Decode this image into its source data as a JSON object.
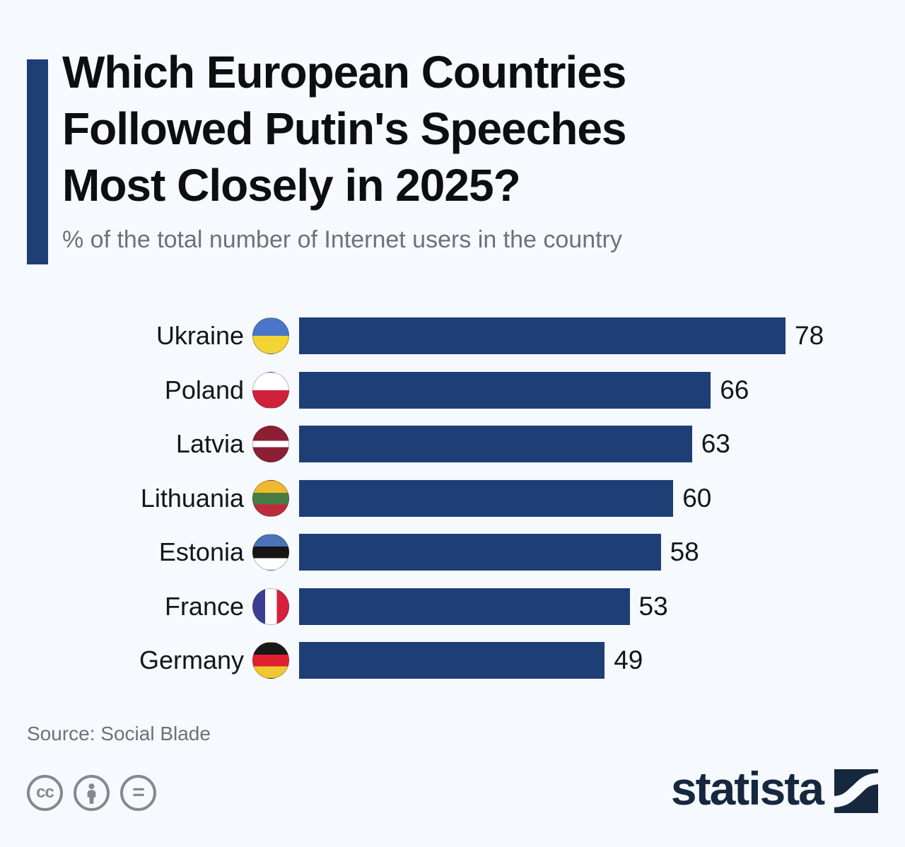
{
  "page": {
    "background": "#f6f9fd"
  },
  "header": {
    "accent_color": "#1e3f76",
    "title_lines": [
      "Which European Countries",
      "Followed Putin's Speeches",
      "Most Closely in 2025?"
    ],
    "subtitle": "% of the total number of Internet users in the country"
  },
  "chart_data": {
    "type": "bar",
    "orientation": "horizontal",
    "title": "Which European Countries Followed Putin's Speeches Most Closely in 2025?",
    "xlabel": "% of the total number of Internet users in the country",
    "categories": [
      "Ukraine",
      "Poland",
      "Latvia",
      "Lithuania",
      "Estonia",
      "France",
      "Germany"
    ],
    "values": [
      78,
      66,
      63,
      60,
      58,
      53,
      49
    ],
    "xlim": [
      0,
      78
    ],
    "bar_color": "#1e3f76",
    "grid": "off",
    "legend": "none",
    "value_labels": "end-of-bar",
    "flag_icons": [
      "ukraine-flag-icon",
      "poland-flag-icon",
      "latvia-flag-icon",
      "lithuania-flag-icon",
      "estonia-flag-icon",
      "france-flag-icon",
      "germany-flag-icon"
    ]
  },
  "footer": {
    "source": "Source: Social Blade",
    "license_icons": [
      {
        "name": "cc-icon",
        "glyph": "cc"
      },
      {
        "name": "cc-by-icon",
        "glyph": "person"
      },
      {
        "name": "cc-nd-icon",
        "glyph": "="
      }
    ],
    "brand": {
      "logo_text": "statista",
      "logo_color": "#16283e",
      "logo_mark": "statista-wave-icon"
    }
  }
}
